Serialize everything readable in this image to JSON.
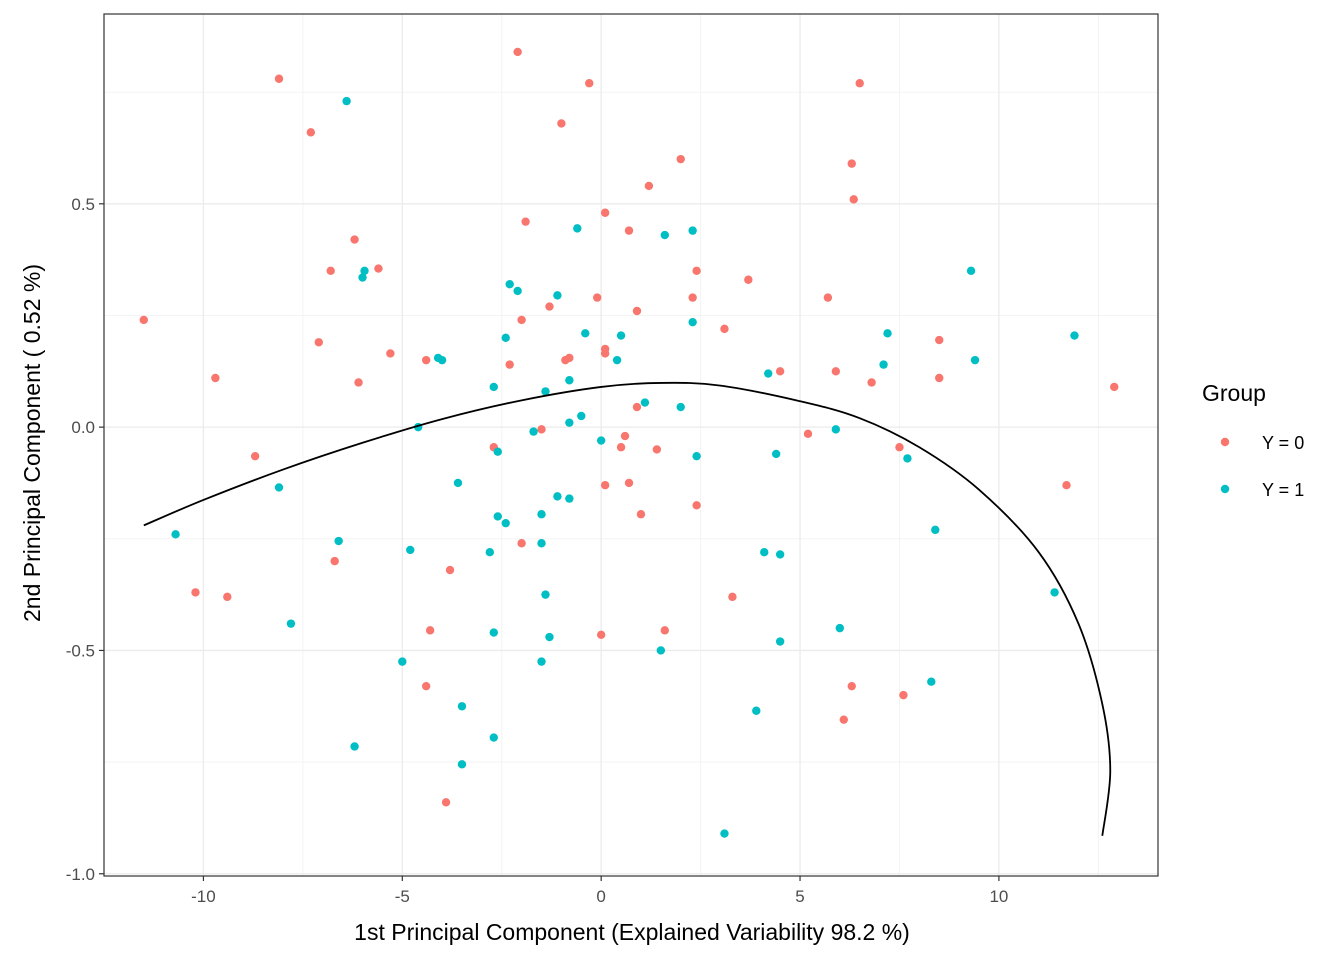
{
  "chart_data": {
    "type": "scatter",
    "xlabel": "1st Principal Component (Explained Variability 98.2 %)",
    "ylabel": "2nd Principal Component ( 0.52 %)",
    "xlim": [
      -12.5,
      14.0
    ],
    "ylim": [
      -1.005,
      0.925
    ],
    "x_ticks": [
      -10,
      -5,
      0,
      5,
      10
    ],
    "y_ticks": [
      -1.0,
      -0.5,
      0.0,
      0.5
    ],
    "x_tick_labels": [
      "-10",
      "-5",
      "0",
      "5",
      "10"
    ],
    "y_tick_labels": [
      "-1.0",
      "-0.5",
      "0.0",
      "0.5"
    ],
    "grid": true,
    "legend": {
      "title": "Group",
      "position": "right"
    },
    "series": [
      {
        "name": "Y = 0",
        "color": "#F8766D",
        "points": [
          [
            -2.1,
            0.84
          ],
          [
            -8.1,
            0.78
          ],
          [
            -0.3,
            0.77
          ],
          [
            6.5,
            0.77
          ],
          [
            -7.3,
            0.66
          ],
          [
            -1.0,
            0.68
          ],
          [
            2.0,
            0.6
          ],
          [
            6.3,
            0.59
          ],
          [
            1.2,
            0.54
          ],
          [
            6.35,
            0.51
          ],
          [
            0.1,
            0.48
          ],
          [
            -1.9,
            0.46
          ],
          [
            0.7,
            0.44
          ],
          [
            -6.2,
            0.42
          ],
          [
            -6.8,
            0.35
          ],
          [
            -5.6,
            0.355
          ],
          [
            2.4,
            0.35
          ],
          [
            3.7,
            0.33
          ],
          [
            -0.1,
            0.29
          ],
          [
            2.3,
            0.29
          ],
          [
            5.7,
            0.29
          ],
          [
            -1.3,
            0.27
          ],
          [
            0.9,
            0.26
          ],
          [
            -2.0,
            0.24
          ],
          [
            -11.5,
            0.24
          ],
          [
            3.1,
            0.22
          ],
          [
            -7.1,
            0.19
          ],
          [
            8.5,
            0.195
          ],
          [
            0.1,
            0.175
          ],
          [
            -5.3,
            0.165
          ],
          [
            0.1,
            0.165
          ],
          [
            -0.8,
            0.155
          ],
          [
            -0.9,
            0.15
          ],
          [
            -4.4,
            0.15
          ],
          [
            -2.3,
            0.14
          ],
          [
            5.9,
            0.125
          ],
          [
            4.5,
            0.125
          ],
          [
            -9.7,
            0.11
          ],
          [
            8.5,
            0.11
          ],
          [
            -6.1,
            0.1
          ],
          [
            6.8,
            0.1
          ],
          [
            12.9,
            0.09
          ],
          [
            0.9,
            0.045
          ],
          [
            5.2,
            -0.015
          ],
          [
            0.6,
            -0.02
          ],
          [
            -2.7,
            -0.045
          ],
          [
            0.5,
            -0.045
          ],
          [
            7.5,
            -0.045
          ],
          [
            1.4,
            -0.05
          ],
          [
            -8.7,
            -0.065
          ],
          [
            0.1,
            -0.13
          ],
          [
            0.7,
            -0.125
          ],
          [
            11.7,
            -0.13
          ],
          [
            2.4,
            -0.175
          ],
          [
            1.0,
            -0.195
          ],
          [
            -2.0,
            -0.26
          ],
          [
            -6.7,
            -0.3
          ],
          [
            -3.8,
            -0.32
          ],
          [
            -10.2,
            -0.37
          ],
          [
            -9.4,
            -0.38
          ],
          [
            3.3,
            -0.38
          ],
          [
            -4.3,
            -0.455
          ],
          [
            1.6,
            -0.455
          ],
          [
            0.0,
            -0.465
          ],
          [
            -4.4,
            -0.58
          ],
          [
            6.3,
            -0.58
          ],
          [
            7.6,
            -0.6
          ],
          [
            6.1,
            -0.655
          ],
          [
            -3.9,
            -0.84
          ],
          [
            -1.5,
            -0.005
          ]
        ]
      },
      {
        "name": "Y = 1",
        "color": "#00BFC4",
        "points": [
          [
            -6.4,
            0.73
          ],
          [
            -0.6,
            0.445
          ],
          [
            2.3,
            0.44
          ],
          [
            1.6,
            0.43
          ],
          [
            9.3,
            0.35
          ],
          [
            -5.95,
            0.35
          ],
          [
            -6.0,
            0.335
          ],
          [
            -2.3,
            0.32
          ],
          [
            -2.1,
            0.305
          ],
          [
            -1.1,
            0.295
          ],
          [
            2.3,
            0.235
          ],
          [
            -0.4,
            0.21
          ],
          [
            0.5,
            0.205
          ],
          [
            7.2,
            0.21
          ],
          [
            11.9,
            0.205
          ],
          [
            -2.4,
            0.2
          ],
          [
            -4.1,
            0.155
          ],
          [
            -4.0,
            0.15
          ],
          [
            0.4,
            0.15
          ],
          [
            9.4,
            0.15
          ],
          [
            7.1,
            0.14
          ],
          [
            4.2,
            0.12
          ],
          [
            -0.8,
            0.105
          ],
          [
            -2.7,
            0.09
          ],
          [
            -1.4,
            0.08
          ],
          [
            1.1,
            0.055
          ],
          [
            2.0,
            0.045
          ],
          [
            -0.5,
            0.025
          ],
          [
            -0.8,
            0.01
          ],
          [
            -4.6,
            0.0
          ],
          [
            -1.7,
            -0.01
          ],
          [
            5.9,
            -0.005
          ],
          [
            0.0,
            -0.03
          ],
          [
            -2.6,
            -0.055
          ],
          [
            4.4,
            -0.06
          ],
          [
            2.4,
            -0.065
          ],
          [
            7.7,
            -0.07
          ],
          [
            -3.6,
            -0.125
          ],
          [
            -8.1,
            -0.135
          ],
          [
            -1.1,
            -0.155
          ],
          [
            -0.8,
            -0.16
          ],
          [
            -1.5,
            -0.195
          ],
          [
            -2.6,
            -0.2
          ],
          [
            -2.4,
            -0.215
          ],
          [
            8.4,
            -0.23
          ],
          [
            -10.7,
            -0.24
          ],
          [
            -6.6,
            -0.255
          ],
          [
            -1.5,
            -0.26
          ],
          [
            -4.8,
            -0.275
          ],
          [
            4.1,
            -0.28
          ],
          [
            -2.8,
            -0.28
          ],
          [
            4.5,
            -0.285
          ],
          [
            -1.4,
            -0.375
          ],
          [
            11.4,
            -0.37
          ],
          [
            -7.8,
            -0.44
          ],
          [
            -2.7,
            -0.46
          ],
          [
            -1.3,
            -0.47
          ],
          [
            4.5,
            -0.48
          ],
          [
            6.0,
            -0.45
          ],
          [
            1.5,
            -0.5
          ],
          [
            -5.0,
            -0.525
          ],
          [
            -1.5,
            -0.525
          ],
          [
            8.3,
            -0.57
          ],
          [
            -3.5,
            -0.625
          ],
          [
            3.9,
            -0.635
          ],
          [
            -2.7,
            -0.695
          ],
          [
            -6.2,
            -0.715
          ],
          [
            -3.5,
            -0.755
          ],
          [
            3.1,
            -0.91
          ]
        ]
      }
    ],
    "curve": {
      "type": "line",
      "color": "#000000",
      "points": [
        [
          -11.5,
          -0.22
        ],
        [
          -10,
          -0.163
        ],
        [
          -8,
          -0.095
        ],
        [
          -6,
          -0.035
        ],
        [
          -4,
          0.018
        ],
        [
          -2,
          0.06
        ],
        [
          0,
          0.09
        ],
        [
          1.5,
          0.099
        ],
        [
          3,
          0.093
        ],
        [
          5,
          0.058
        ],
        [
          6.5,
          0.02
        ],
        [
          8,
          -0.045
        ],
        [
          9.5,
          -0.14
        ],
        [
          11,
          -0.28
        ],
        [
          12.0,
          -0.44
        ],
        [
          12.6,
          -0.62
        ],
        [
          12.8,
          -0.77
        ],
        [
          12.6,
          -0.915
        ]
      ]
    }
  }
}
